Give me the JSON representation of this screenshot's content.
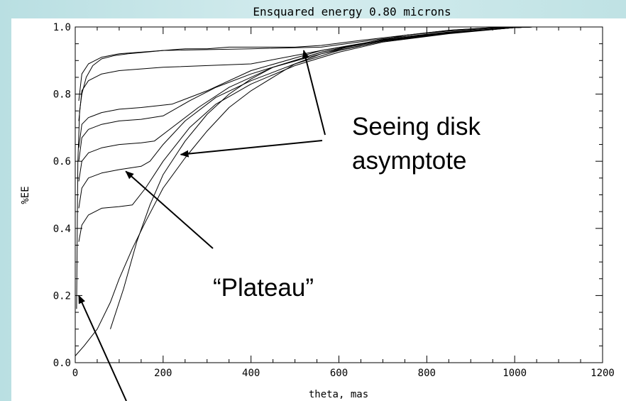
{
  "colors": {
    "background_gradient_left": "#b9dfe2",
    "plot_background": "#ffffff",
    "curve_color": "#000000"
  },
  "chart_data": {
    "type": "line",
    "title": "Ensquared energy 0.80 microns",
    "xlabel": "theta, mas",
    "ylabel": "%EE",
    "xlim": [
      0,
      1200
    ],
    "ylim": [
      0.0,
      1.0
    ],
    "xticks": [
      "0",
      "200",
      "400",
      "600",
      "800",
      "1000",
      "1200"
    ],
    "yticks": [
      "0.0",
      "0.2",
      "0.4",
      "0.6",
      "0.8",
      "1.0"
    ],
    "grid": false,
    "series": [
      {
        "x": [
          8,
          15,
          30,
          60,
          100,
          200,
          400,
          560,
          700,
          850,
          1000,
          1040
        ],
        "y": [
          0.78,
          0.86,
          0.89,
          0.91,
          0.92,
          0.93,
          0.935,
          0.94,
          0.965,
          0.985,
          0.998,
          1.0
        ]
      },
      {
        "x": [
          8,
          15,
          30,
          60,
          100,
          200,
          400,
          560,
          700,
          850,
          1000,
          1040
        ],
        "y": [
          0.72,
          0.81,
          0.84,
          0.86,
          0.87,
          0.88,
          0.89,
          0.93,
          0.962,
          0.984,
          0.998,
          1.0
        ]
      },
      {
        "x": [
          8,
          15,
          30,
          60,
          100,
          150,
          220,
          300,
          400,
          560,
          700,
          850,
          1000,
          1040
        ],
        "y": [
          0.64,
          0.71,
          0.73,
          0.745,
          0.755,
          0.76,
          0.77,
          0.81,
          0.87,
          0.93,
          0.96,
          0.983,
          0.998,
          1.0
        ]
      },
      {
        "x": [
          8,
          15,
          30,
          60,
          100,
          150,
          200,
          260,
          320,
          400,
          560,
          700,
          850,
          1000,
          1040
        ],
        "y": [
          0.6,
          0.67,
          0.695,
          0.71,
          0.72,
          0.725,
          0.735,
          0.78,
          0.82,
          0.86,
          0.925,
          0.96,
          0.982,
          0.998,
          1.0
        ]
      },
      {
        "x": [
          8,
          15,
          30,
          60,
          100,
          150,
          180,
          220,
          280,
          350,
          450,
          560,
          700,
          850,
          1000,
          1040
        ],
        "y": [
          0.54,
          0.6,
          0.625,
          0.64,
          0.65,
          0.655,
          0.66,
          0.7,
          0.76,
          0.82,
          0.88,
          0.92,
          0.958,
          0.982,
          0.998,
          1.0
        ]
      },
      {
        "x": [
          8,
          15,
          30,
          60,
          100,
          150,
          170,
          200,
          250,
          320,
          400,
          500,
          600,
          700,
          850,
          1000,
          1040
        ],
        "y": [
          0.46,
          0.52,
          0.55,
          0.565,
          0.575,
          0.585,
          0.6,
          0.65,
          0.72,
          0.79,
          0.84,
          0.89,
          0.93,
          0.957,
          0.981,
          0.998,
          1.0
        ]
      },
      {
        "x": [
          8,
          15,
          30,
          60,
          100,
          130,
          160,
          200,
          260,
          320,
          400,
          500,
          600,
          700,
          850,
          1000,
          1040
        ],
        "y": [
          0.36,
          0.41,
          0.44,
          0.46,
          0.465,
          0.47,
          0.52,
          0.6,
          0.7,
          0.77,
          0.83,
          0.885,
          0.925,
          0.955,
          0.98,
          0.998,
          1.0
        ]
      },
      {
        "x": [
          3,
          6,
          10,
          15,
          25,
          40,
          60,
          90,
          120,
          160,
          200,
          250,
          300,
          350,
          400,
          450,
          500,
          560,
          650,
          750,
          850,
          950,
          1040
        ],
        "y": [
          0.16,
          0.6,
          0.75,
          0.8,
          0.85,
          0.885,
          0.905,
          0.915,
          0.92,
          0.925,
          0.93,
          0.935,
          0.935,
          0.94,
          0.94,
          0.94,
          0.94,
          0.945,
          0.96,
          0.975,
          0.988,
          0.996,
          1.0
        ]
      },
      {
        "x": [
          0,
          20,
          50,
          80,
          100,
          130,
          160,
          200,
          250,
          300,
          350,
          400,
          450,
          500,
          560,
          650,
          750,
          850,
          950,
          1040
        ],
        "y": [
          0.02,
          0.05,
          0.1,
          0.18,
          0.25,
          0.34,
          0.42,
          0.52,
          0.61,
          0.69,
          0.76,
          0.81,
          0.85,
          0.89,
          0.92,
          0.95,
          0.975,
          0.99,
          0.998,
          1.0
        ]
      },
      {
        "x": [
          80,
          110,
          140,
          170,
          200,
          250,
          300,
          350,
          400,
          450,
          500,
          560,
          650,
          750,
          850,
          950,
          1040
        ],
        "y": [
          0.1,
          0.22,
          0.36,
          0.47,
          0.56,
          0.66,
          0.74,
          0.8,
          0.845,
          0.88,
          0.9,
          0.925,
          0.95,
          0.975,
          0.99,
          0.998,
          1.0
        ]
      }
    ],
    "annotations": [
      {
        "text": "Seeing disk",
        "arrow_targets": [
          [
            520,
            0.93
          ],
          [
            240,
            0.62
          ]
        ]
      },
      {
        "text": "asymptote"
      },
      {
        "text": "“Plateau”",
        "arrow_targets": [
          [
            115,
            0.57
          ]
        ]
      }
    ],
    "bottom_arrow_target": [
      8,
      0.2
    ]
  }
}
